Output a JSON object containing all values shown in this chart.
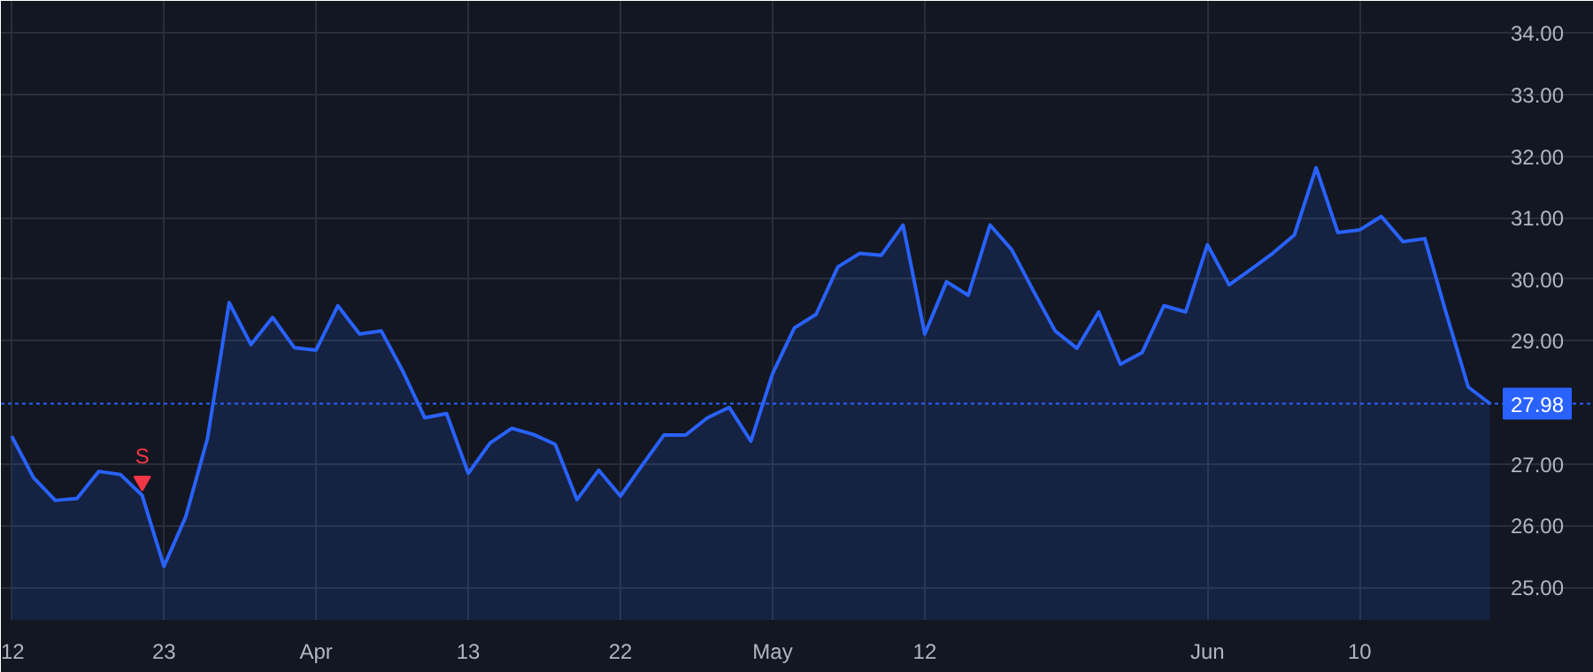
{
  "chart_data": {
    "type": "area",
    "categories": [
      "12",
      null,
      null,
      null,
      null,
      null,
      null,
      "23",
      null,
      null,
      null,
      null,
      null,
      null,
      "Apr",
      null,
      null,
      null,
      null,
      null,
      null,
      "13",
      null,
      null,
      null,
      null,
      null,
      null,
      "22",
      null,
      null,
      null,
      null,
      null,
      null,
      "May",
      null,
      null,
      null,
      null,
      null,
      null,
      "12",
      null,
      null,
      null,
      null,
      null,
      null,
      null,
      null,
      null,
      null,
      null,
      null,
      "Jun",
      null,
      null,
      null,
      null,
      null,
      null,
      "10",
      null,
      null,
      null,
      null,
      null,
      null
    ],
    "series": [
      {
        "color": "#2962ff",
        "values": [
          27.45,
          26.78,
          26.41,
          26.44,
          26.88,
          26.83,
          26.49,
          25.34,
          26.14,
          27.41,
          29.62,
          28.94,
          29.38,
          28.89,
          28.85,
          29.57,
          29.11,
          29.16,
          28.5,
          27.75,
          27.82,
          26.85,
          27.34,
          27.58,
          27.48,
          27.32,
          26.42,
          26.9,
          26.48,
          26.98,
          27.47,
          27.47,
          27.75,
          27.92,
          27.37,
          28.47,
          29.21,
          29.43,
          30.2,
          30.42,
          30.39,
          30.88,
          29.11,
          29.96,
          29.74,
          30.88,
          30.48,
          29.81,
          29.16,
          28.88,
          29.47,
          28.62,
          28.81,
          29.57,
          29.47,
          30.56,
          29.91,
          30.16,
          30.42,
          30.72,
          31.81,
          30.76,
          30.8,
          31.02,
          30.61,
          30.66,
          29.43,
          28.25,
          27.98
        ]
      },
      {
        "type": "scatter",
        "name": "S",
        "color": "#f23645",
        "marker": "triangle",
        "values": [
          null,
          null,
          null,
          null,
          null,
          null,
          26.72,
          null,
          null,
          null,
          null,
          null,
          null,
          null,
          null,
          null,
          null,
          null,
          null,
          null,
          null,
          null,
          null,
          null,
          null,
          null,
          null,
          null,
          null,
          null,
          null,
          null,
          null,
          null,
          null,
          null,
          null,
          null,
          null,
          null,
          null,
          null,
          null,
          null,
          null,
          null,
          null,
          null,
          null,
          null,
          null,
          null,
          null,
          null,
          null,
          null,
          null,
          null,
          null,
          null,
          null,
          null,
          null,
          null,
          null,
          null,
          null,
          null,
          null
        ]
      }
    ],
    "ylim": [
      24.47,
      34.52
    ],
    "yticks": [
      {
        "value": 25,
        "label": "25.00"
      },
      {
        "value": 26,
        "label": "26.00"
      },
      {
        "value": 27,
        "label": "27.00"
      },
      {
        "value": 29,
        "label": "29.00"
      },
      {
        "value": 30,
        "label": "30.00"
      },
      {
        "value": 31,
        "label": "31.00"
      },
      {
        "value": 32,
        "label": "32.00"
      },
      {
        "value": 33,
        "label": "33.00"
      },
      {
        "value": 34,
        "label": "34.00"
      }
    ],
    "ref_lines": [
      {
        "axis": "y",
        "value": 27.98,
        "label": "27.98",
        "color": "#2962ff",
        "line_style": "dotted"
      }
    ],
    "grid": true,
    "legend": false
  }
}
